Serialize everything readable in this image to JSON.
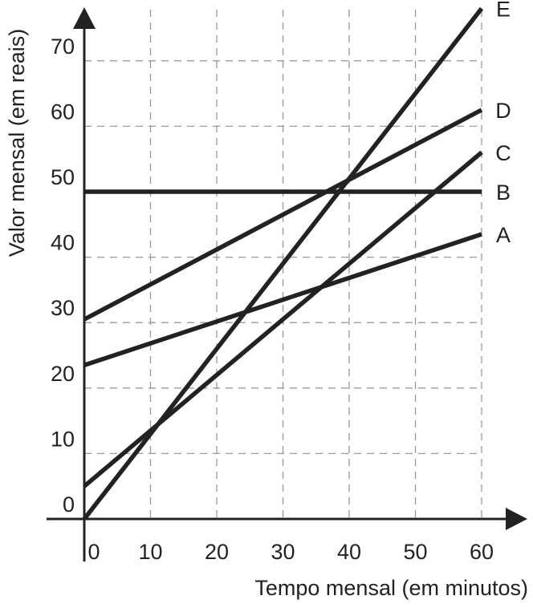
{
  "chart_data": {
    "type": "line",
    "title": "",
    "xlabel": "Tempo mensal (em minutos)",
    "ylabel": "Valor mensal (em reais)",
    "xlim": [
      0,
      60
    ],
    "ylim": [
      0,
      78
    ],
    "x_ticks": [
      "0",
      "10",
      "20",
      "30",
      "40",
      "50",
      "60"
    ],
    "y_ticks": [
      "0",
      "10",
      "20",
      "30",
      "40",
      "50",
      "60",
      "70"
    ],
    "grid": true,
    "series": [
      {
        "name": "A",
        "x": [
          0,
          60
        ],
        "y": [
          23.5,
          43.5
        ]
      },
      {
        "name": "B",
        "x": [
          0,
          60
        ],
        "y": [
          50,
          50
        ]
      },
      {
        "name": "C",
        "x": [
          0,
          60
        ],
        "y": [
          5,
          56
        ]
      },
      {
        "name": "D",
        "x": [
          0,
          60
        ],
        "y": [
          30.5,
          62.5
        ]
      },
      {
        "name": "E",
        "x": [
          0,
          60
        ],
        "y": [
          0,
          78
        ]
      }
    ]
  }
}
